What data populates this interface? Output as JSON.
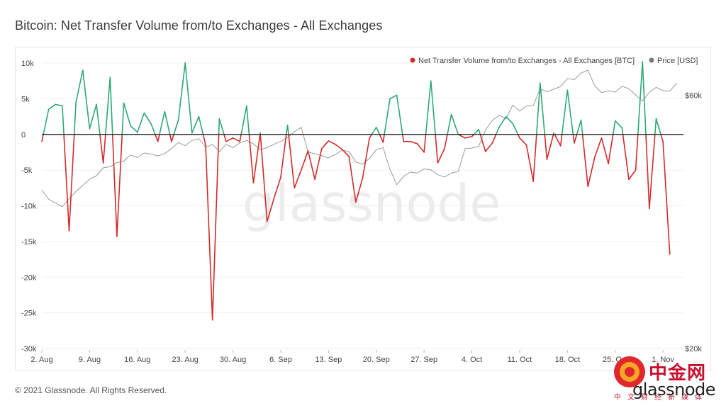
{
  "title": "Bitcoin: Net Transfer Volume from/to Exchanges - All Exchanges",
  "footer": "© 2021 Glassnode. All Rights Reserved.",
  "brand": "glassnode",
  "watermark": "glassnode",
  "seal": {
    "text": "中金网",
    "sub": "中文财经新媒体",
    "color": "#c8102e"
  },
  "colors": {
    "positive": "#2ea876",
    "negative": "#d42a2a",
    "price": "#9a9a9a",
    "zero_line": "#333333"
  },
  "chart_data": {
    "type": "line",
    "title": "Bitcoin: Net Transfer Volume from/to Exchanges - All Exchanges",
    "legend_position": "top-right",
    "grid": true,
    "x_ticks": [
      "2. Aug",
      "9. Aug",
      "16. Aug",
      "23. Aug",
      "30. Aug",
      "6. Sep",
      "13. Sep",
      "20. Sep",
      "27. Sep",
      "4. Oct",
      "11. Oct",
      "18. Oct",
      "25. Oct",
      "1. Nov"
    ],
    "x_range_days": [
      0,
      94
    ],
    "y_left": {
      "ticks": [
        "10k",
        "5k",
        "0",
        "-5k",
        "-10k",
        "-15k",
        "-20k",
        "-25k",
        "-30k"
      ],
      "ylim": [
        -30000,
        10000
      ]
    },
    "y_right": {
      "ticks": [
        "$60k",
        "$20k"
      ],
      "ylim": [
        20000,
        69000
      ],
      "scale": "log"
    },
    "series": [
      {
        "name": "Net Transfer Volume from/to Exchanges - All Exchanges [BTC]",
        "axis": "left",
        "values": [
          -1000,
          3500,
          4200,
          4000,
          -13500,
          4500,
          9000,
          800,
          4200,
          -4000,
          8000,
          -14300,
          4400,
          1200,
          300,
          3000,
          1500,
          -1000,
          3200,
          -1000,
          2000,
          10000,
          200,
          2500,
          -1500,
          -26000,
          2200,
          -1000,
          -500,
          -1000,
          4000,
          -6800,
          200,
          -12200,
          -9000,
          -6000,
          1300,
          -7500,
          -5000,
          -2300,
          -6300,
          -2000,
          -900,
          -1400,
          -2100,
          -3100,
          -9500,
          -6100,
          -500,
          1000,
          -1100,
          5000,
          5500,
          -1000,
          -1000,
          -1300,
          -2500,
          7500,
          -4000,
          -2000,
          2800,
          0,
          -500,
          -300,
          700,
          -2400,
          -1200,
          1000,
          2500,
          1500,
          -500,
          -1500,
          -6600,
          7200,
          -3500,
          200,
          -1600,
          6200,
          -1200,
          2000,
          -7300,
          -3200,
          -500,
          -4100,
          1900,
          900,
          -6300,
          -5000,
          10200,
          -10400,
          2200,
          -1000,
          -16800
        ]
      },
      {
        "name": "Price [USD]",
        "axis": "right",
        "values": [
          39800,
          38200,
          37600,
          37000,
          38300,
          39500,
          40600,
          41700,
          42300,
          43800,
          44000,
          44800,
          45100,
          46300,
          45800,
          46700,
          46500,
          46100,
          46600,
          47600,
          48900,
          48200,
          49300,
          49700,
          47900,
          48500,
          47000,
          48500,
          47800,
          48800,
          49300,
          48600,
          47400,
          47800,
          48500,
          49100,
          50000,
          51200,
          52200,
          46900,
          46500,
          46200,
          45700,
          46400,
          47300,
          47000,
          44900,
          44500,
          45600,
          47400,
          47800,
          43500,
          40700,
          42200,
          43000,
          42800,
          43600,
          43400,
          42500,
          42100,
          42800,
          43100,
          47600,
          47700,
          48100,
          51600,
          53800,
          55000,
          54200,
          57500,
          56000,
          57300,
          57400,
          61700,
          60900,
          61600,
          62300,
          64500,
          64200,
          66100,
          66900,
          62500,
          60700,
          61200,
          60800,
          62400,
          61700,
          60100,
          58500,
          60800,
          62100,
          61200,
          61100,
          63200
        ]
      }
    ]
  }
}
